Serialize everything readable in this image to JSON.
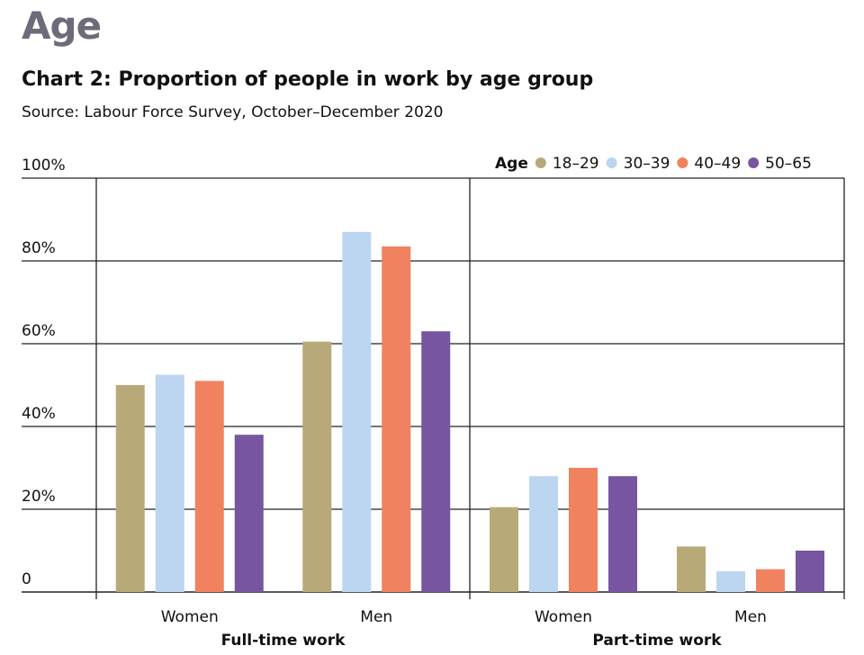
{
  "section_title": "Age",
  "chart_data": {
    "type": "bar",
    "title": "Chart 2: Proportion of people in work by age group",
    "source": "Source: Labour Force Survey, October–December 2020",
    "ylim": [
      0,
      100
    ],
    "y_ticks": [
      {
        "value": 0,
        "label": "0"
      },
      {
        "value": 20,
        "label": "20%"
      },
      {
        "value": 40,
        "label": "40%"
      },
      {
        "value": 60,
        "label": "60%"
      },
      {
        "value": 80,
        "label": "80%"
      },
      {
        "value": 100,
        "label": "100%"
      }
    ],
    "grid": true,
    "legend": {
      "title": "Age",
      "placement": "top-right"
    },
    "groups": [
      {
        "label": "Full-time work",
        "categories": [
          "Women",
          "Men"
        ]
      },
      {
        "label": "Part-time work",
        "categories": [
          "Women",
          "Men"
        ]
      }
    ],
    "series": [
      {
        "name": "18–29",
        "color": "#b8a978",
        "values": [
          50,
          60.5,
          20.5,
          11
        ]
      },
      {
        "name": "30–39",
        "color": "#bcd5f0",
        "values": [
          52.5,
          87,
          28,
          5
        ]
      },
      {
        "name": "40–49",
        "color": "#f08260",
        "values": [
          51,
          83.5,
          30,
          5.5
        ]
      },
      {
        "name": "50–65",
        "color": "#7855a0",
        "values": [
          38,
          63,
          28,
          10
        ]
      }
    ]
  }
}
